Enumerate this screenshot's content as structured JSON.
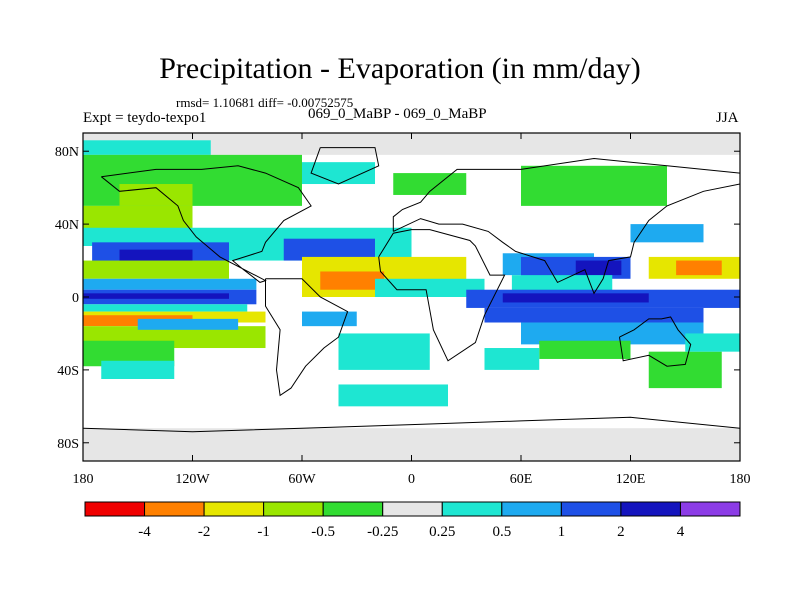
{
  "chart_data": {
    "type": "heatmap",
    "title": "Precipitation - Evaporation (in mm/day)",
    "stats_line": "rmsd= 1.10681 diff= -0.00752575",
    "left_label": "Expt = teydo-texpo1",
    "center_label": "069_0_MaBP - 069_0_MaBP",
    "right_label": "JJA",
    "x_ticks": [
      "180",
      "120W",
      "60W",
      "0",
      "60E",
      "120E",
      "180"
    ],
    "y_ticks": [
      "80N",
      "40N",
      "0",
      "40S",
      "80S"
    ],
    "xlim": [
      -180,
      180
    ],
    "ylim": [
      -90,
      90
    ],
    "colorbar": {
      "labels": [
        "-4",
        "-2",
        "-1",
        "-0.5",
        "-0.25",
        "0.25",
        "0.5",
        "1",
        "2",
        "4"
      ],
      "bounds": [
        -4,
        -2,
        -1,
        -0.5,
        -0.25,
        0.25,
        0.5,
        1,
        2,
        4
      ],
      "colors": [
        "#f00000",
        "#ff8000",
        "#e6e600",
        "#9ae600",
        "#32dc32",
        "#e6e6e6",
        "#1ee6d2",
        "#1eaaf0",
        "#1e50e6",
        "#1414be",
        "#8c3ce6"
      ]
    },
    "bands": [
      {
        "lat": [
          -90,
          -72
        ],
        "lon": [
          -180,
          180
        ],
        "value": 0
      },
      {
        "lat": [
          78,
          90
        ],
        "lon": [
          -180,
          180
        ],
        "value": 0
      },
      {
        "lat": [
          78,
          86
        ],
        "lon": [
          -180,
          -110
        ],
        "value": 0.3
      },
      {
        "lat": [
          50,
          78
        ],
        "lon": [
          -180,
          -60
        ],
        "value": -0.4
      },
      {
        "lat": [
          50,
          62
        ],
        "lon": [
          -160,
          -120
        ],
        "value": -0.7
      },
      {
        "lat": [
          56,
          68
        ],
        "lon": [
          -10,
          30
        ],
        "value": -0.4
      },
      {
        "lat": [
          50,
          72
        ],
        "lon": [
          60,
          140
        ],
        "value": -0.35
      },
      {
        "lat": [
          62,
          74
        ],
        "lon": [
          -60,
          -20
        ],
        "value": 0.3
      },
      {
        "lat": [
          35,
          50
        ],
        "lon": [
          -180,
          -120
        ],
        "value": -0.7
      },
      {
        "lat": [
          28,
          38
        ],
        "lon": [
          -180,
          -100
        ],
        "value": 0.3
      },
      {
        "lat": [
          16,
          30
        ],
        "lon": [
          -175,
          -100
        ],
        "value": 1.5
      },
      {
        "lat": [
          18,
          26
        ],
        "lon": [
          -160,
          -120
        ],
        "value": 3
      },
      {
        "lat": [
          20,
          38
        ],
        "lon": [
          -100,
          0
        ],
        "value": 0.4
      },
      {
        "lat": [
          20,
          32
        ],
        "lon": [
          -70,
          -20
        ],
        "value": 1.5
      },
      {
        "lat": [
          10,
          20
        ],
        "lon": [
          -180,
          -100
        ],
        "value": -0.6
      },
      {
        "lat": [
          4,
          10
        ],
        "lon": [
          -180,
          -85
        ],
        "value": 0.6
      },
      {
        "lat": [
          -4,
          4
        ],
        "lon": [
          -180,
          -85
        ],
        "value": 1.5
      },
      {
        "lat": [
          -1,
          2
        ],
        "lon": [
          -180,
          -100
        ],
        "value": 3
      },
      {
        "lat": [
          -8,
          -4
        ],
        "lon": [
          -180,
          -90
        ],
        "value": 0.3
      },
      {
        "lat": [
          -14,
          -8
        ],
        "lon": [
          -180,
          -80
        ],
        "value": -1.5
      },
      {
        "lat": [
          -16,
          -10
        ],
        "lon": [
          -180,
          -120
        ],
        "value": -3
      },
      {
        "lat": [
          -28,
          -16
        ],
        "lon": [
          -180,
          -80
        ],
        "value": -0.7
      },
      {
        "lat": [
          -18,
          -12
        ],
        "lon": [
          -150,
          -95
        ],
        "value": 0.6
      },
      {
        "lat": [
          -38,
          -24
        ],
        "lon": [
          -180,
          -130
        ],
        "value": -0.4
      },
      {
        "lat": [
          -45,
          -35
        ],
        "lon": [
          -170,
          -130
        ],
        "value": 0.3
      },
      {
        "lat": [
          0,
          22
        ],
        "lon": [
          -60,
          30
        ],
        "value": -1.5
      },
      {
        "lat": [
          4,
          14
        ],
        "lon": [
          -50,
          -15
        ],
        "value": -3
      },
      {
        "lat": [
          0,
          10
        ],
        "lon": [
          -20,
          40
        ],
        "value": 0.4
      },
      {
        "lat": [
          12,
          24
        ],
        "lon": [
          50,
          100
        ],
        "value": 0.6
      },
      {
        "lat": [
          10,
          22
        ],
        "lon": [
          60,
          120
        ],
        "value": 1.5
      },
      {
        "lat": [
          12,
          20
        ],
        "lon": [
          90,
          115
        ],
        "value": 3
      },
      {
        "lat": [
          0,
          12
        ],
        "lon": [
          55,
          110
        ],
        "value": 0.4
      },
      {
        "lat": [
          -6,
          4
        ],
        "lon": [
          30,
          180
        ],
        "value": 1.5
      },
      {
        "lat": [
          -3,
          2
        ],
        "lon": [
          50,
          130
        ],
        "value": 3
      },
      {
        "lat": [
          -14,
          -6
        ],
        "lon": [
          40,
          160
        ],
        "value": 1.5
      },
      {
        "lat": [
          -26,
          -14
        ],
        "lon": [
          60,
          160
        ],
        "value": 0.6
      },
      {
        "lat": [
          -34,
          -24
        ],
        "lon": [
          70,
          120
        ],
        "value": -0.4
      },
      {
        "lat": [
          -16,
          -8
        ],
        "lon": [
          -60,
          -30
        ],
        "value": 0.5
      },
      {
        "lat": [
          -40,
          -20
        ],
        "lon": [
          -40,
          10
        ],
        "value": 0.3
      },
      {
        "lat": [
          -60,
          -48
        ],
        "lon": [
          -40,
          20
        ],
        "value": 0.4
      },
      {
        "lat": [
          -40,
          -28
        ],
        "lon": [
          40,
          70
        ],
        "value": 0.4
      },
      {
        "lat": [
          10,
          22
        ],
        "lon": [
          130,
          180
        ],
        "value": -1.5
      },
      {
        "lat": [
          12,
          20
        ],
        "lon": [
          145,
          170
        ],
        "value": -3
      },
      {
        "lat": [
          30,
          40
        ],
        "lon": [
          120,
          160
        ],
        "value": 0.6
      },
      {
        "lat": [
          -50,
          -30
        ],
        "lon": [
          130,
          170
        ],
        "value": -0.4
      },
      {
        "lat": [
          -30,
          -20
        ],
        "lon": [
          150,
          180
        ],
        "value": 0.3
      }
    ],
    "land_outlines": [
      [
        [
          -170,
          66
        ],
        [
          -140,
          70
        ],
        [
          -115,
          70
        ],
        [
          -95,
          72
        ],
        [
          -80,
          68
        ],
        [
          -62,
          60
        ],
        [
          -55,
          50
        ],
        [
          -70,
          42
        ],
        [
          -80,
          30
        ],
        [
          -82,
          25
        ],
        [
          -98,
          20
        ],
        [
          -92,
          15
        ],
        [
          -83,
          8
        ],
        [
          -80,
          9
        ],
        [
          -105,
          22
        ],
        [
          -118,
          33
        ],
        [
          -125,
          42
        ],
        [
          -128,
          50
        ],
        [
          -140,
          60
        ],
        [
          -160,
          58
        ],
        [
          -170,
          66
        ]
      ],
      [
        [
          -50,
          82
        ],
        [
          -20,
          82
        ],
        [
          -18,
          72
        ],
        [
          -40,
          62
        ],
        [
          -55,
          68
        ],
        [
          -50,
          82
        ]
      ],
      [
        [
          -80,
          10
        ],
        [
          -60,
          10
        ],
        [
          -50,
          0
        ],
        [
          -35,
          -8
        ],
        [
          -40,
          -22
        ],
        [
          -48,
          -28
        ],
        [
          -58,
          -38
        ],
        [
          -66,
          -50
        ],
        [
          -72,
          -54
        ],
        [
          -74,
          -40
        ],
        [
          -72,
          -18
        ],
        [
          -80,
          -5
        ],
        [
          -80,
          10
        ]
      ],
      [
        [
          -18,
          22
        ],
        [
          -10,
          35
        ],
        [
          0,
          37
        ],
        [
          10,
          37
        ],
        [
          32,
          31
        ],
        [
          35,
          28
        ],
        [
          43,
          12
        ],
        [
          51,
          12
        ],
        [
          40,
          -10
        ],
        [
          35,
          -25
        ],
        [
          20,
          -35
        ],
        [
          12,
          -18
        ],
        [
          8,
          4
        ],
        [
          -8,
          4
        ],
        [
          -17,
          14
        ],
        [
          -18,
          22
        ]
      ],
      [
        [
          -10,
          36
        ],
        [
          -10,
          44
        ],
        [
          -5,
          48
        ],
        [
          5,
          52
        ],
        [
          10,
          58
        ],
        [
          25,
          70
        ],
        [
          60,
          70
        ],
        [
          100,
          76
        ],
        [
          140,
          72
        ],
        [
          180,
          68
        ],
        [
          180,
          62
        ],
        [
          160,
          58
        ],
        [
          140,
          50
        ],
        [
          130,
          42
        ],
        [
          122,
          30
        ],
        [
          120,
          22
        ],
        [
          108,
          20
        ],
        [
          105,
          10
        ],
        [
          100,
          2
        ],
        [
          95,
          15
        ],
        [
          80,
          8
        ],
        [
          73,
          20
        ],
        [
          57,
          25
        ],
        [
          50,
          30
        ],
        [
          42,
          36
        ],
        [
          28,
          40
        ],
        [
          15,
          40
        ],
        [
          5,
          43
        ],
        [
          -10,
          36
        ]
      ],
      [
        [
          114,
          -22
        ],
        [
          122,
          -18
        ],
        [
          130,
          -12
        ],
        [
          137,
          -12
        ],
        [
          142,
          -11
        ],
        [
          146,
          -18
        ],
        [
          153,
          -26
        ],
        [
          150,
          -37
        ],
        [
          140,
          -38
        ],
        [
          130,
          -32
        ],
        [
          116,
          -35
        ],
        [
          114,
          -22
        ]
      ],
      [
        [
          -180,
          -72
        ],
        [
          -120,
          -74
        ],
        [
          -60,
          -72
        ],
        [
          0,
          -70
        ],
        [
          60,
          -68
        ],
        [
          120,
          -66
        ],
        [
          180,
          -72
        ]
      ]
    ]
  }
}
